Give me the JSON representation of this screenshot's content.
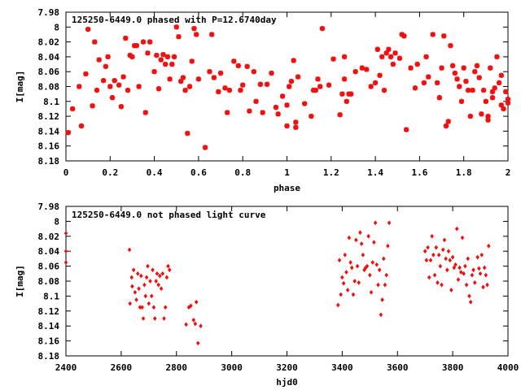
{
  "chart_data": [
    {
      "type": "scatter",
      "title": "125250-6449.0 phased with P=12.6740day",
      "xlabel": "phase",
      "ylabel": "I[mag]",
      "xlim": [
        0,
        2
      ],
      "ylim": [
        7.98,
        8.18
      ],
      "y_inverted": true,
      "grid": false,
      "x_ticks": [
        "0",
        "0.2",
        "0.4",
        "0.6",
        "0.8",
        "1",
        "1.2",
        "1.4",
        "1.6",
        "1.8",
        "2"
      ],
      "y_ticks": [
        "7.98",
        "8",
        "8.02",
        "8.04",
        "8.06",
        "8.08",
        "8.1",
        "8.12",
        "8.14",
        "8.16",
        "8.18"
      ],
      "marker_color": "#ee1111",
      "marker": "star",
      "points": [
        [
          0.01,
          8.142
        ],
        [
          0.03,
          8.11
        ],
        [
          0.06,
          8.08
        ],
        [
          0.07,
          8.133
        ],
        [
          0.09,
          8.063
        ],
        [
          0.1,
          8.003
        ],
        [
          0.12,
          8.106
        ],
        [
          0.13,
          8.02
        ],
        [
          0.14,
          8.085
        ],
        [
          0.15,
          8.044
        ],
        [
          0.17,
          8.072
        ],
        [
          0.18,
          8.053
        ],
        [
          0.19,
          8.04
        ],
        [
          0.2,
          8.08
        ],
        [
          0.21,
          8.095
        ],
        [
          0.22,
          8.072
        ],
        [
          0.24,
          8.078
        ],
        [
          0.25,
          8.107
        ],
        [
          0.26,
          8.067
        ],
        [
          0.27,
          8.015
        ],
        [
          0.28,
          8.085
        ],
        [
          0.29,
          8.038
        ],
        [
          0.3,
          8.04
        ],
        [
          0.31,
          8.025
        ],
        [
          0.32,
          8.025
        ],
        [
          0.33,
          8.08
        ],
        [
          0.35,
          8.02
        ],
        [
          0.36,
          8.115
        ],
        [
          0.37,
          8.035
        ],
        [
          0.38,
          8.02
        ],
        [
          0.4,
          8.06
        ],
        [
          0.41,
          8.038
        ],
        [
          0.42,
          8.083
        ],
        [
          0.43,
          8.044
        ],
        [
          0.44,
          8.037
        ],
        [
          0.45,
          8.05
        ],
        [
          0.46,
          8.04
        ],
        [
          0.47,
          8.07
        ],
        [
          0.48,
          8.05
        ],
        [
          0.49,
          8.04
        ],
        [
          0.5,
          8.0
        ],
        [
          0.51,
          8.013
        ],
        [
          0.52,
          8.073
        ],
        [
          0.53,
          8.068
        ],
        [
          0.54,
          8.085
        ],
        [
          0.55,
          8.143
        ],
        [
          0.56,
          8.08
        ],
        [
          0.57,
          8.046
        ],
        [
          0.58,
          8.002
        ],
        [
          0.59,
          8.01
        ],
        [
          0.6,
          8.07
        ],
        [
          0.63,
          8.162
        ],
        [
          0.65,
          8.06
        ],
        [
          0.66,
          8.01
        ],
        [
          0.67,
          8.068
        ],
        [
          0.69,
          8.087
        ],
        [
          0.7,
          8.062
        ],
        [
          0.72,
          8.082
        ],
        [
          0.73,
          8.115
        ],
        [
          0.74,
          8.085
        ],
        [
          0.76,
          8.046
        ],
        [
          0.78,
          8.052
        ],
        [
          0.79,
          8.085
        ],
        [
          0.8,
          8.078
        ],
        [
          0.82,
          8.053
        ],
        [
          0.83,
          8.113
        ],
        [
          0.85,
          8.06
        ],
        [
          0.86,
          8.1
        ],
        [
          0.88,
          8.077
        ],
        [
          0.89,
          8.115
        ],
        [
          0.91,
          8.077
        ],
        [
          0.93,
          8.062
        ],
        [
          0.95,
          8.108
        ],
        [
          0.96,
          8.117
        ],
        [
          0.98,
          8.093
        ],
        [
          1.0,
          8.105
        ],
        [
          1.0,
          8.133
        ],
        [
          1.01,
          8.08
        ],
        [
          1.02,
          8.073
        ],
        [
          1.03,
          8.045
        ],
        [
          1.04,
          8.135
        ],
        [
          1.04,
          8.128
        ],
        [
          1.05,
          8.067
        ],
        [
          1.08,
          8.103
        ],
        [
          1.11,
          8.12
        ],
        [
          1.12,
          8.085
        ],
        [
          1.13,
          8.085
        ],
        [
          1.14,
          8.07
        ],
        [
          1.15,
          8.08
        ],
        [
          1.16,
          8.002
        ],
        [
          1.19,
          8.078
        ],
        [
          1.21,
          8.043
        ],
        [
          1.24,
          8.118
        ],
        [
          1.25,
          8.09
        ],
        [
          1.26,
          8.04
        ],
        [
          1.26,
          8.07
        ],
        [
          1.27,
          8.1
        ],
        [
          1.28,
          8.09
        ],
        [
          1.29,
          8.09
        ],
        [
          1.31,
          8.06
        ],
        [
          1.34,
          8.055
        ],
        [
          1.36,
          8.057
        ],
        [
          1.38,
          8.08
        ],
        [
          1.4,
          8.075
        ],
        [
          1.41,
          8.03
        ],
        [
          1.42,
          8.065
        ],
        [
          1.43,
          8.04
        ],
        [
          1.44,
          8.085
        ],
        [
          1.45,
          8.035
        ],
        [
          1.46,
          8.03
        ],
        [
          1.47,
          8.04
        ],
        [
          1.48,
          8.05
        ],
        [
          1.49,
          8.035
        ],
        [
          1.51,
          8.042
        ],
        [
          1.52,
          8.01
        ],
        [
          1.53,
          8.012
        ],
        [
          1.54,
          8.138
        ],
        [
          1.56,
          8.055
        ],
        [
          1.58,
          8.082
        ],
        [
          1.59,
          8.05
        ],
        [
          1.62,
          8.075
        ],
        [
          1.63,
          8.04
        ],
        [
          1.64,
          8.067
        ],
        [
          1.66,
          8.01
        ],
        [
          1.68,
          8.075
        ],
        [
          1.69,
          8.095
        ],
        [
          1.7,
          8.055
        ],
        [
          1.71,
          8.012
        ],
        [
          1.72,
          8.133
        ],
        [
          1.73,
          8.127
        ],
        [
          1.74,
          8.025
        ],
        [
          1.75,
          8.052
        ],
        [
          1.76,
          8.062
        ],
        [
          1.77,
          8.07
        ],
        [
          1.78,
          8.08
        ],
        [
          1.79,
          8.1
        ],
        [
          1.8,
          8.055
        ],
        [
          1.81,
          8.073
        ],
        [
          1.82,
          8.085
        ],
        [
          1.83,
          8.12
        ],
        [
          1.84,
          8.085
        ],
        [
          1.85,
          8.06
        ],
        [
          1.86,
          8.052
        ],
        [
          1.87,
          8.068
        ],
        [
          1.88,
          8.117
        ],
        [
          1.89,
          8.085
        ],
        [
          1.9,
          8.1
        ],
        [
          1.91,
          8.12
        ],
        [
          1.91,
          8.125
        ],
        [
          1.92,
          8.055
        ],
        [
          1.93,
          8.087
        ],
        [
          1.93,
          8.095
        ],
        [
          1.94,
          8.082
        ],
        [
          1.95,
          8.04
        ],
        [
          1.96,
          8.075
        ],
        [
          1.97,
          8.065
        ],
        [
          1.97,
          8.105
        ],
        [
          1.98,
          8.11
        ],
        [
          1.99,
          8.087
        ],
        [
          2.0,
          8.097
        ],
        [
          2.0,
          8.102
        ]
      ]
    },
    {
      "type": "scatter",
      "title": "125250-6449.0 not phased light curve",
      "xlabel": "hjd0",
      "ylabel": "I[mag]",
      "xlim": [
        2400,
        4000
      ],
      "ylim": [
        7.98,
        8.18
      ],
      "y_inverted": true,
      "grid": false,
      "x_ticks": [
        "2400",
        "2600",
        "2800",
        "3000",
        "3200",
        "3400",
        "3600",
        "3800",
        "4000"
      ],
      "y_ticks": [
        "7.98",
        "8",
        "8.02",
        "8.04",
        "8.06",
        "8.08",
        "8.1",
        "8.12",
        "8.14",
        "8.16",
        "8.18"
      ],
      "marker_color": "#ee1111",
      "marker": "diamond",
      "points": [
        [
          2400,
          8.016
        ],
        [
          2400,
          8.04
        ],
        [
          2400,
          8.055
        ],
        [
          2630,
          8.038
        ],
        [
          2632,
          8.11
        ],
        [
          2638,
          8.075
        ],
        [
          2640,
          8.087
        ],
        [
          2645,
          8.065
        ],
        [
          2650,
          8.095
        ],
        [
          2655,
          8.105
        ],
        [
          2660,
          8.07
        ],
        [
          2664,
          8.09
        ],
        [
          2668,
          8.115
        ],
        [
          2672,
          8.073
        ],
        [
          2676,
          8.115
        ],
        [
          2680,
          8.13
        ],
        [
          2684,
          8.085
        ],
        [
          2688,
          8.1
        ],
        [
          2692,
          8.075
        ],
        [
          2696,
          8.06
        ],
        [
          2700,
          8.11
        ],
        [
          2705,
          8.08
        ],
        [
          2710,
          8.1
        ],
        [
          2714,
          8.065
        ],
        [
          2718,
          8.115
        ],
        [
          2722,
          8.13
        ],
        [
          2726,
          8.08
        ],
        [
          2730,
          8.07
        ],
        [
          2735,
          8.085
        ],
        [
          2740,
          8.073
        ],
        [
          2745,
          8.09
        ],
        [
          2750,
          8.07
        ],
        [
          2755,
          8.13
        ],
        [
          2760,
          8.115
        ],
        [
          2765,
          8.075
        ],
        [
          2770,
          8.06
        ],
        [
          2775,
          8.065
        ],
        [
          2835,
          8.138
        ],
        [
          2845,
          8.115
        ],
        [
          2852,
          8.113
        ],
        [
          2862,
          8.132
        ],
        [
          2868,
          8.137
        ],
        [
          2872,
          8.108
        ],
        [
          2878,
          8.163
        ],
        [
          2888,
          8.14
        ],
        [
          3385,
          8.112
        ],
        [
          3390,
          8.052
        ],
        [
          3395,
          8.098
        ],
        [
          3400,
          8.075
        ],
        [
          3405,
          8.083
        ],
        [
          3410,
          8.045
        ],
        [
          3415,
          8.068
        ],
        [
          3420,
          8.092
        ],
        [
          3425,
          8.022
        ],
        [
          3430,
          8.055
        ],
        [
          3435,
          8.062
        ],
        [
          3440,
          8.098
        ],
        [
          3445,
          8.08
        ],
        [
          3450,
          8.025
        ],
        [
          3455,
          8.06
        ],
        [
          3460,
          8.082
        ],
        [
          3465,
          8.015
        ],
        [
          3470,
          8.03
        ],
        [
          3475,
          8.045
        ],
        [
          3480,
          8.065
        ],
        [
          3485,
          8.062
        ],
        [
          3490,
          8.06
        ],
        [
          3495,
          8.02
        ],
        [
          3500,
          8.072
        ],
        [
          3505,
          8.095
        ],
        [
          3510,
          8.055
        ],
        [
          3515,
          8.028
        ],
        [
          3520,
          8.002
        ],
        [
          3525,
          8.058
        ],
        [
          3530,
          8.085
        ],
        [
          3535,
          8.065
        ],
        [
          3540,
          8.125
        ],
        [
          3545,
          8.105
        ],
        [
          3550,
          8.05
        ],
        [
          3555,
          8.085
        ],
        [
          3560,
          8.072
        ],
        [
          3565,
          8.033
        ],
        [
          3570,
          8.002
        ],
        [
          3700,
          8.04
        ],
        [
          3705,
          8.052
        ],
        [
          3710,
          8.035
        ],
        [
          3715,
          8.075
        ],
        [
          3720,
          8.052
        ],
        [
          3725,
          8.02
        ],
        [
          3730,
          8.045
        ],
        [
          3735,
          8.072
        ],
        [
          3740,
          8.035
        ],
        [
          3745,
          8.082
        ],
        [
          3750,
          8.045
        ],
        [
          3755,
          8.06
        ],
        [
          3760,
          8.085
        ],
        [
          3765,
          8.038
        ],
        [
          3770,
          8.025
        ],
        [
          3775,
          8.05
        ],
        [
          3780,
          8.065
        ],
        [
          3785,
          8.04
        ],
        [
          3790,
          8.052
        ],
        [
          3795,
          8.092
        ],
        [
          3800,
          8.048
        ],
        [
          3805,
          8.062
        ],
        [
          3810,
          8.058
        ],
        [
          3815,
          8.01
        ],
        [
          3820,
          8.078
        ],
        [
          3825,
          8.062
        ],
        [
          3830,
          8.068
        ],
        [
          3835,
          8.022
        ],
        [
          3840,
          8.07
        ],
        [
          3845,
          8.06
        ],
        [
          3850,
          8.085
        ],
        [
          3855,
          8.05
        ],
        [
          3860,
          8.1
        ],
        [
          3865,
          8.108
        ],
        [
          3870,
          8.072
        ],
        [
          3875,
          8.065
        ],
        [
          3880,
          8.082
        ],
        [
          3890,
          8.048
        ],
        [
          3895,
          8.063
        ],
        [
          3900,
          8.07
        ],
        [
          3905,
          8.045
        ],
        [
          3910,
          8.088
        ],
        [
          3915,
          8.062
        ],
        [
          3920,
          8.072
        ],
        [
          3925,
          8.085
        ],
        [
          3930,
          8.033
        ]
      ]
    }
  ]
}
